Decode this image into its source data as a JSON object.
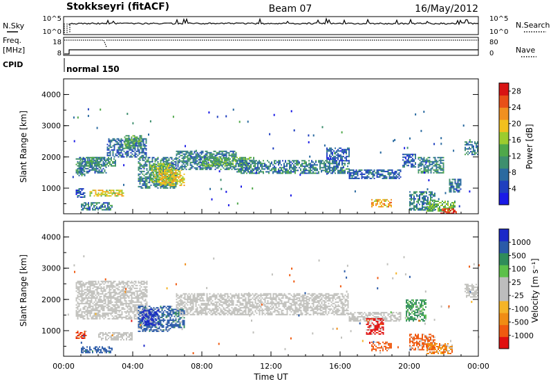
{
  "header": {
    "station": "Stokkseyri (fitACF)",
    "beam": "Beam 07",
    "date": "16/May/2012"
  },
  "top_panel": {
    "nsky_label": "N.Sky",
    "nsky_ticks": [
      "10^5",
      "10^0"
    ],
    "nsearch_label": "N.Search",
    "nsearch_ticks": [
      "10^5",
      "10^0"
    ],
    "freq_label_1": "Freq.",
    "freq_label_2": "[MHz]",
    "freq_ticks": [
      "18",
      "8"
    ],
    "nave_label": "Nave",
    "nave_ticks": [
      "80",
      "0"
    ],
    "cpid_label": "CPID",
    "cpid_value": "normal 150"
  },
  "colors": {
    "power_scale": [
      "#1a1ae6",
      "#1f3fbf",
      "#2a6aa0",
      "#3e8f6e",
      "#4fa84a",
      "#9ccc2e",
      "#f2c01e",
      "#f09020",
      "#e85018",
      "#d81414"
    ],
    "velocity_scale": [
      "#e01010",
      "#f05a10",
      "#f08c14",
      "#f5b428",
      "#bdbdbd",
      "#bdbdbd",
      "#5cc04a",
      "#2f8c5a",
      "#2a5aa8",
      "#1a28c8"
    ],
    "gray": "#c0c0bc"
  },
  "chart_data": [
    {
      "type": "heatmap",
      "name": "Power",
      "xlabel": "Time UT",
      "ylabel": "Slant Range [km]",
      "x_ticks": [
        "00:00",
        "04:00",
        "08:00",
        "12:00",
        "16:00",
        "20:00",
        "00:00"
      ],
      "xlim": [
        0,
        24
      ],
      "y_ticks": [
        "1000",
        "2000",
        "3000",
        "4000"
      ],
      "ylim": [
        180,
        4500
      ],
      "colorbar": {
        "label": "Power [dB]",
        "ticks": [
          "4",
          "8",
          "12",
          "16",
          "20",
          "24",
          "28"
        ],
        "range": [
          0,
          30
        ]
      },
      "regions": [
        {
          "t0": 0.7,
          "t1": 1.2,
          "r0": 1400,
          "r1": 2000,
          "value": 10
        },
        {
          "t0": 0.7,
          "t1": 1.2,
          "r0": 700,
          "r1": 1000,
          "value": 6
        },
        {
          "t0": 0.9,
          "t1": 2.5,
          "r0": 1500,
          "r1": 2000,
          "value": 8
        },
        {
          "t0": 1.2,
          "t1": 3.0,
          "r0": 1700,
          "r1": 2000,
          "value": 11
        },
        {
          "t0": 1.5,
          "t1": 3.5,
          "r0": 750,
          "r1": 950,
          "value": 18
        },
        {
          "t0": 1.0,
          "t1": 2.8,
          "r0": 300,
          "r1": 550,
          "value": 9
        },
        {
          "t0": 2.5,
          "t1": 4.8,
          "r0": 2000,
          "r1": 2600,
          "value": 7
        },
        {
          "t0": 3.5,
          "t1": 4.5,
          "r0": 2300,
          "r1": 2700,
          "value": 12
        },
        {
          "t0": 4.3,
          "t1": 6.5,
          "r0": 1000,
          "r1": 2000,
          "value": 9
        },
        {
          "t0": 5.0,
          "t1": 6.3,
          "r0": 1200,
          "r1": 1800,
          "value": 15
        },
        {
          "t0": 5.5,
          "t1": 7.0,
          "r0": 1100,
          "r1": 1600,
          "value": 19
        },
        {
          "t0": 6.5,
          "t1": 10.0,
          "r0": 1600,
          "r1": 2200,
          "value": 9
        },
        {
          "t0": 8.0,
          "t1": 11.0,
          "r0": 1700,
          "r1": 2000,
          "value": 13
        },
        {
          "t0": 10.0,
          "t1": 16.5,
          "r0": 1500,
          "r1": 1900,
          "value": 9
        },
        {
          "t0": 16.5,
          "t1": 19.5,
          "r0": 1300,
          "r1": 1600,
          "value": 7
        },
        {
          "t0": 15.2,
          "t1": 16.5,
          "r0": 1900,
          "r1": 2300,
          "value": 6
        },
        {
          "t0": 17.8,
          "t1": 19.0,
          "r0": 400,
          "r1": 650,
          "value": 21
        },
        {
          "t0": 20.0,
          "t1": 21.5,
          "r0": 300,
          "r1": 900,
          "value": 9
        },
        {
          "t0": 21.0,
          "t1": 22.6,
          "r0": 250,
          "r1": 600,
          "value": 14
        },
        {
          "t0": 21.8,
          "t1": 22.7,
          "r0": 180,
          "r1": 350,
          "value": 27
        },
        {
          "t0": 20.5,
          "t1": 22.0,
          "r0": 1500,
          "r1": 2000,
          "value": 10
        },
        {
          "t0": 19.6,
          "t1": 20.4,
          "r0": 1700,
          "r1": 2100,
          "value": 6
        },
        {
          "t0": 23.2,
          "t1": 24.0,
          "r0": 2100,
          "r1": 2500,
          "value": 9
        },
        {
          "t0": 22.3,
          "t1": 23.0,
          "r0": 900,
          "r1": 1300,
          "value": 8
        }
      ]
    },
    {
      "type": "heatmap",
      "name": "Velocity",
      "xlabel": "Time UT",
      "ylabel": "Slant Range [km]",
      "x_ticks": [
        "00:00",
        "04:00",
        "08:00",
        "12:00",
        "16:00",
        "20:00",
        "00:00"
      ],
      "xlim": [
        0,
        24
      ],
      "y_ticks": [
        "1000",
        "2000",
        "3000",
        "4000"
      ],
      "ylim": [
        180,
        4500
      ],
      "colorbar": {
        "label": "Velocity [m s⁻¹]",
        "ticks": [
          "1000",
          "500",
          "100",
          "25",
          "-25",
          "-100",
          "-500",
          "-1000"
        ]
      },
      "regions": [
        {
          "t0": 0.7,
          "t1": 4.8,
          "r0": 1400,
          "r1": 2600,
          "value": 0
        },
        {
          "t0": 6.5,
          "t1": 16.5,
          "r0": 1500,
          "r1": 2200,
          "value": 0
        },
        {
          "t0": 16.5,
          "t1": 19.5,
          "r0": 1300,
          "r1": 1600,
          "value": 0
        },
        {
          "t0": 2.0,
          "t1": 4.0,
          "r0": 700,
          "r1": 950,
          "value": 0
        },
        {
          "t0": 4.3,
          "t1": 6.3,
          "r0": 1000,
          "r1": 1800,
          "value": 150
        },
        {
          "t0": 4.5,
          "t1": 5.5,
          "r0": 1200,
          "r1": 1700,
          "value": 700
        },
        {
          "t0": 6.3,
          "t1": 7.0,
          "r0": 1100,
          "r1": 1700,
          "value": 120
        },
        {
          "t0": 0.7,
          "t1": 1.3,
          "r0": 750,
          "r1": 1000,
          "value": -400
        },
        {
          "t0": 1.0,
          "t1": 2.8,
          "r0": 300,
          "r1": 500,
          "value": 150
        },
        {
          "t0": 17.8,
          "t1": 19.0,
          "r0": 350,
          "r1": 650,
          "value": -300
        },
        {
          "t0": 20.0,
          "t1": 21.5,
          "r0": 400,
          "r1": 900,
          "value": -200
        },
        {
          "t0": 21.0,
          "t1": 22.5,
          "r0": 250,
          "r1": 600,
          "value": -80
        },
        {
          "t0": 17.5,
          "t1": 18.5,
          "r0": 900,
          "r1": 1400,
          "value": -700
        },
        {
          "t0": 19.8,
          "t1": 21.0,
          "r0": 1300,
          "r1": 2000,
          "value": 60
        },
        {
          "t0": 23.2,
          "t1": 24.0,
          "r0": 2100,
          "r1": 2500,
          "value": 0
        }
      ]
    }
  ]
}
